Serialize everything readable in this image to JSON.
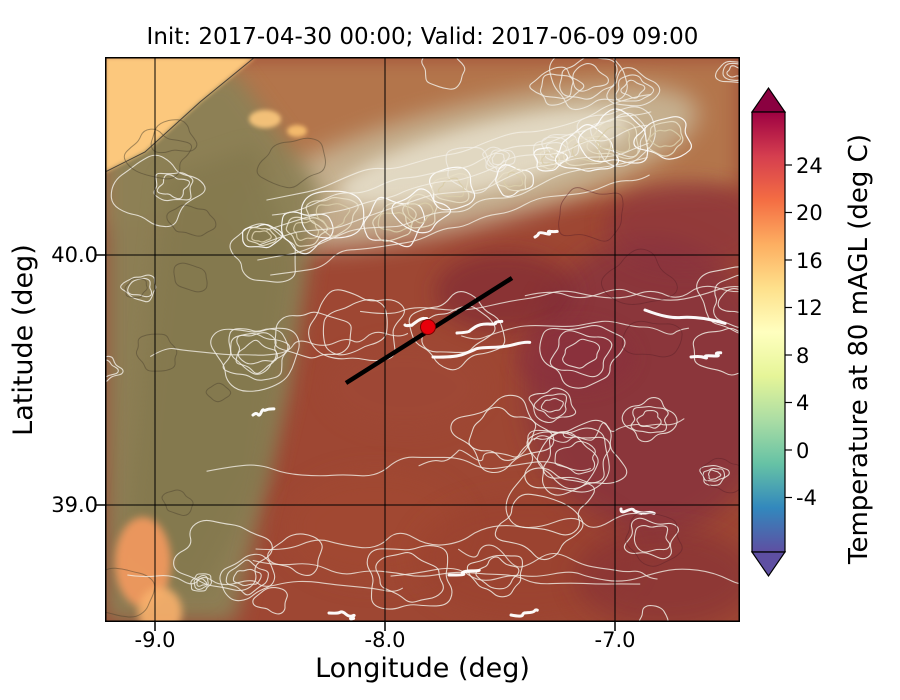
{
  "chart": {
    "title": "Init: 2017-04-30 00:00; Valid: 2017-06-09 09:00",
    "xlabel": "Longitude (deg)",
    "ylabel": "Latitude (deg)",
    "xtick_labels": [
      "-9.0",
      "-8.0",
      "-7.0"
    ],
    "ytick_labels": [
      "40.0",
      "39.0"
    ]
  },
  "colorbar": {
    "label": "Temperature at 80 mAGL (deg C)",
    "tick_labels": [
      "24",
      "20",
      "16",
      "12",
      "8",
      "4",
      "0",
      "-4"
    ]
  },
  "colors": {
    "land_base": "#9e4733",
    "ocean": "#fcc87d",
    "contour": "#f0ece4",
    "grid": "#000000",
    "marker": "#e8000b",
    "cbar_over": "#8a0140",
    "cbar_under": "#5e4fa2"
  },
  "chart_data": {
    "type": "heatmap",
    "title": "Init: 2017-04-30 00:00; Valid: 2017-06-09 09:00",
    "xlabel": "Longitude (deg)",
    "ylabel": "Latitude (deg)",
    "xlim": [
      -9.22,
      -6.46
    ],
    "ylim": [
      38.53,
      40.79
    ],
    "xticks": [
      -9.0,
      -8.0,
      -7.0
    ],
    "yticks": [
      39.0,
      40.0
    ],
    "grid": true,
    "colorbar": {
      "label": "Temperature at 80 mAGL (deg C)",
      "ticks": [
        -4,
        0,
        4,
        8,
        12,
        16,
        20,
        24
      ],
      "range": [
        -8.6,
        28.5
      ],
      "colormap": "Spectral_r",
      "extend": "both"
    },
    "approx_field": {
      "lons": [
        -9.0,
        -8.5,
        -8.0,
        -7.5,
        -7.0,
        -6.5
      ],
      "lats": [
        40.5,
        40.0,
        39.5,
        39.0,
        38.7
      ],
      "temps_degC": [
        [
          13,
          17,
          19,
          21,
          22,
          22
        ],
        [
          14,
          18,
          22,
          24,
          24,
          25
        ],
        [
          16,
          20,
          24,
          25,
          26,
          26
        ],
        [
          17,
          21,
          23,
          24,
          25,
          26
        ],
        [
          18,
          22,
          23,
          24,
          25,
          25
        ]
      ]
    },
    "overlays": {
      "contours": "white/gray terrain elevation contours across whole domain",
      "cross_section_line": {
        "lon_from": -8.17,
        "lat_from": 39.49,
        "lon_to": -7.45,
        "lat_to": 39.91,
        "color": "#000000"
      },
      "marker": {
        "lon": -7.81,
        "lat": 39.71,
        "color": "#e8000b",
        "shape": "circle"
      }
    },
    "notable_regions": {
      "ocean_nw_corner_degC": 14,
      "coastal_band": "olive/tan terrain band west of about -8.7 deg lon",
      "interior": "22-26 degC (dark red / maroon)"
    }
  }
}
